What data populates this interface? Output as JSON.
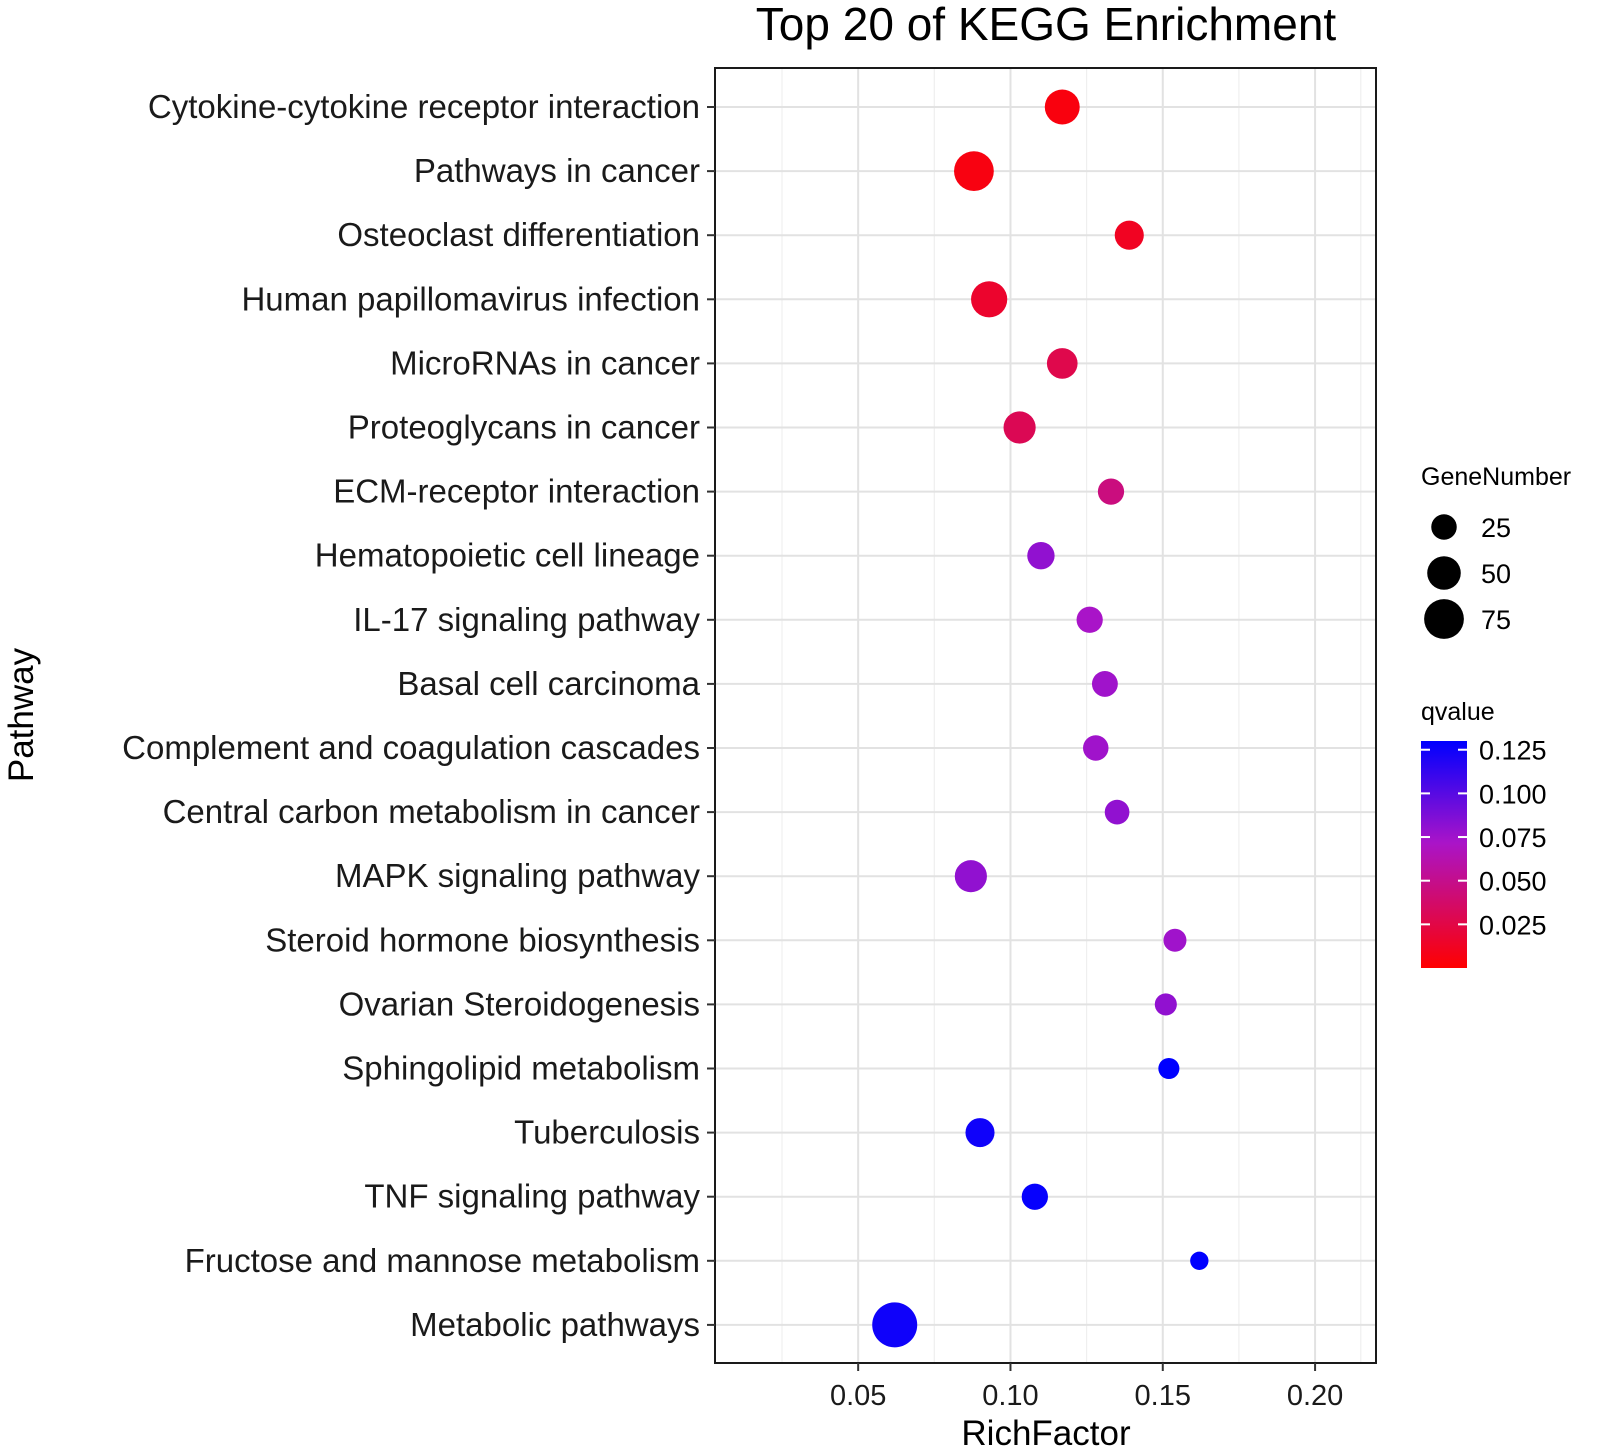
{
  "chart_data": {
    "type": "scatter",
    "title": "Top 20 of KEGG Enrichment",
    "xlabel": "RichFactor",
    "ylabel": "Pathway",
    "xlim": [
      0.003,
      0.22
    ],
    "xticks": [
      "0.05",
      "0.10",
      "0.15",
      "0.20"
    ],
    "xtick_values": [
      0.05,
      0.1,
      0.15,
      0.2
    ],
    "grid": true,
    "points": [
      {
        "pathway": "Cytokine-cytokine receptor interaction",
        "rich_factor": 0.117,
        "gene_number": 55,
        "qvalue": 0.005
      },
      {
        "pathway": "Pathways in cancer",
        "rich_factor": 0.088,
        "gene_number": 75,
        "qvalue": 0.006
      },
      {
        "pathway": "Osteoclast differentiation",
        "rich_factor": 0.139,
        "gene_number": 35,
        "qvalue": 0.012
      },
      {
        "pathway": "Human papillomavirus infection",
        "rich_factor": 0.093,
        "gene_number": 60,
        "qvalue": 0.016
      },
      {
        "pathway": "MicroRNAs in cancer",
        "rich_factor": 0.117,
        "gene_number": 40,
        "qvalue": 0.027
      },
      {
        "pathway": "Proteoglycans in cancer",
        "rich_factor": 0.103,
        "gene_number": 45,
        "qvalue": 0.03
      },
      {
        "pathway": "ECM-receptor interaction",
        "rich_factor": 0.133,
        "gene_number": 27,
        "qvalue": 0.045
      },
      {
        "pathway": "Hematopoietic cell lineage",
        "rich_factor": 0.11,
        "gene_number": 30,
        "qvalue": 0.08
      },
      {
        "pathway": "IL-17 signaling pathway",
        "rich_factor": 0.126,
        "gene_number": 27,
        "qvalue": 0.072
      },
      {
        "pathway": "Basal cell carcinoma",
        "rich_factor": 0.131,
        "gene_number": 26,
        "qvalue": 0.075
      },
      {
        "pathway": "Complement and coagulation cascades",
        "rich_factor": 0.128,
        "gene_number": 25,
        "qvalue": 0.075
      },
      {
        "pathway": "Central carbon metabolism in cancer",
        "rich_factor": 0.135,
        "gene_number": 23,
        "qvalue": 0.08
      },
      {
        "pathway": "MAPK signaling pathway",
        "rich_factor": 0.087,
        "gene_number": 45,
        "qvalue": 0.08
      },
      {
        "pathway": "Steroid hormone biosynthesis",
        "rich_factor": 0.154,
        "gene_number": 19,
        "qvalue": 0.075
      },
      {
        "pathway": "Ovarian Steroidogenesis",
        "rich_factor": 0.151,
        "gene_number": 17,
        "qvalue": 0.08
      },
      {
        "pathway": "Sphingolipid metabolism",
        "rich_factor": 0.152,
        "gene_number": 15,
        "qvalue": 0.13
      },
      {
        "pathway": "Tuberculosis",
        "rich_factor": 0.09,
        "gene_number": 35,
        "qvalue": 0.125
      },
      {
        "pathway": "TNF signaling pathway",
        "rich_factor": 0.108,
        "gene_number": 27,
        "qvalue": 0.128
      },
      {
        "pathway": "Fructose and mannose metabolism",
        "rich_factor": 0.162,
        "gene_number": 10,
        "qvalue": 0.13
      },
      {
        "pathway": "Metabolic pathways",
        "rich_factor": 0.062,
        "gene_number": 100,
        "qvalue": 0.125
      }
    ],
    "size_legend": {
      "title": "GeneNumber",
      "entries": [
        {
          "label": "25",
          "value": 25
        },
        {
          "label": "50",
          "value": 50
        },
        {
          "label": "75",
          "value": 75
        }
      ]
    },
    "color_legend": {
      "title": "qvalue",
      "range": [
        0.0,
        0.13
      ],
      "low_color": "#ff0000",
      "mid_color": "#aa14c8",
      "high_color": "#0000ff",
      "ticks": [
        {
          "label": "0.125",
          "value": 0.125
        },
        {
          "label": "0.100",
          "value": 0.1
        },
        {
          "label": "0.075",
          "value": 0.075
        },
        {
          "label": "0.050",
          "value": 0.05
        },
        {
          "label": "0.025",
          "value": 0.025
        }
      ]
    }
  }
}
